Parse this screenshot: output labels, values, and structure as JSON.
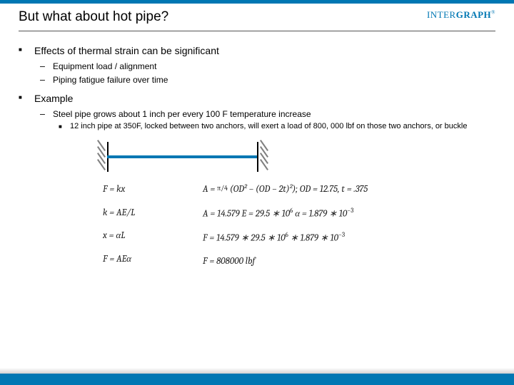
{
  "brand": {
    "part1": "INTER",
    "part2": "GRAPH",
    "reg": "®"
  },
  "title": "But what about hot pipe?",
  "bullets": {
    "b1": "Effects of thermal strain can be significant",
    "b1a": "Equipment load / alignment",
    "b1b": "Piping fatigue failure over time",
    "b2": "Example",
    "b2a": "Steel pipe grows about 1 inch per every 100 F temperature increase",
    "b2a1": "12 inch pipe at 350F, locked between two anchors, will exert a load of 800, 000 lbf on those two anchors, or buckle"
  },
  "diagram": {
    "pipe_color": "#0077b3",
    "anchor_color": "#000000",
    "hatch_color": "#808080"
  },
  "equations": {
    "col1": {
      "r1": "F = kx",
      "r2": "k = AE/L",
      "r3": "x = αL",
      "r4": "F = AEα"
    },
    "col2": {
      "r1_a": "A = ",
      "r1_frac": "π/4",
      "r1_b": " (OD² − (OD − 2t)²); OD = 12.75, t = .375",
      "r2_a": "A = 14.579      E = 29.5 ∗ 10",
      "r2_sup": "6",
      "r2_b": "      α = 1.879 ∗ 10",
      "r2_sup2": "−3",
      "r3_a": "F = 14.579 ∗ 29.5 ∗ 10",
      "r3_sup": "6",
      "r3_b": " ∗ 1.879 ∗ 10",
      "r3_sup2": "−3",
      "r4": "F = 808000 lbf"
    }
  },
  "colors": {
    "accent": "#0077b3",
    "rule": "#555555"
  }
}
